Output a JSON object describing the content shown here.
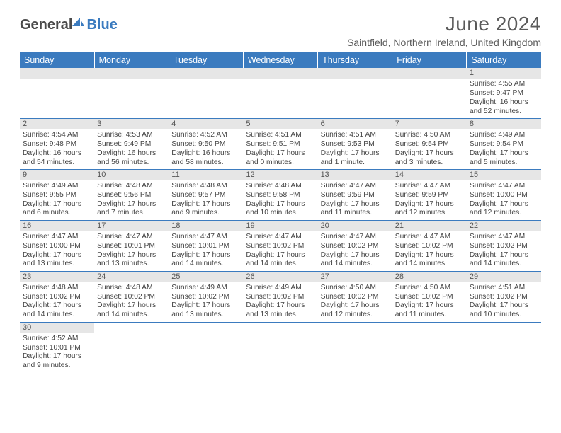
{
  "brand": {
    "part1": "General",
    "part2": "Blue",
    "accent_color": "#3b7bbf",
    "text_color": "#4a4a4a"
  },
  "header": {
    "title": "June 2024",
    "subtitle": "Saintfield, Northern Ireland, United Kingdom"
  },
  "colors": {
    "header_bg": "#3b7bbf",
    "header_fg": "#ffffff",
    "daynum_bg": "#e6e6e6",
    "row_border": "#3b7bbf",
    "body_text": "#444444"
  },
  "daysOfWeek": [
    "Sunday",
    "Monday",
    "Tuesday",
    "Wednesday",
    "Thursday",
    "Friday",
    "Saturday"
  ],
  "weeks": [
    [
      null,
      null,
      null,
      null,
      null,
      null,
      {
        "n": "1",
        "sr": "4:55 AM",
        "ss": "9:47 PM",
        "dl": "16 hours and 52 minutes."
      }
    ],
    [
      {
        "n": "2",
        "sr": "4:54 AM",
        "ss": "9:48 PM",
        "dl": "16 hours and 54 minutes."
      },
      {
        "n": "3",
        "sr": "4:53 AM",
        "ss": "9:49 PM",
        "dl": "16 hours and 56 minutes."
      },
      {
        "n": "4",
        "sr": "4:52 AM",
        "ss": "9:50 PM",
        "dl": "16 hours and 58 minutes."
      },
      {
        "n": "5",
        "sr": "4:51 AM",
        "ss": "9:51 PM",
        "dl": "17 hours and 0 minutes."
      },
      {
        "n": "6",
        "sr": "4:51 AM",
        "ss": "9:53 PM",
        "dl": "17 hours and 1 minute."
      },
      {
        "n": "7",
        "sr": "4:50 AM",
        "ss": "9:54 PM",
        "dl": "17 hours and 3 minutes."
      },
      {
        "n": "8",
        "sr": "4:49 AM",
        "ss": "9:54 PM",
        "dl": "17 hours and 5 minutes."
      }
    ],
    [
      {
        "n": "9",
        "sr": "4:49 AM",
        "ss": "9:55 PM",
        "dl": "17 hours and 6 minutes."
      },
      {
        "n": "10",
        "sr": "4:48 AM",
        "ss": "9:56 PM",
        "dl": "17 hours and 7 minutes."
      },
      {
        "n": "11",
        "sr": "4:48 AM",
        "ss": "9:57 PM",
        "dl": "17 hours and 9 minutes."
      },
      {
        "n": "12",
        "sr": "4:48 AM",
        "ss": "9:58 PM",
        "dl": "17 hours and 10 minutes."
      },
      {
        "n": "13",
        "sr": "4:47 AM",
        "ss": "9:59 PM",
        "dl": "17 hours and 11 minutes."
      },
      {
        "n": "14",
        "sr": "4:47 AM",
        "ss": "9:59 PM",
        "dl": "17 hours and 12 minutes."
      },
      {
        "n": "15",
        "sr": "4:47 AM",
        "ss": "10:00 PM",
        "dl": "17 hours and 12 minutes."
      }
    ],
    [
      {
        "n": "16",
        "sr": "4:47 AM",
        "ss": "10:00 PM",
        "dl": "17 hours and 13 minutes."
      },
      {
        "n": "17",
        "sr": "4:47 AM",
        "ss": "10:01 PM",
        "dl": "17 hours and 13 minutes."
      },
      {
        "n": "18",
        "sr": "4:47 AM",
        "ss": "10:01 PM",
        "dl": "17 hours and 14 minutes."
      },
      {
        "n": "19",
        "sr": "4:47 AM",
        "ss": "10:02 PM",
        "dl": "17 hours and 14 minutes."
      },
      {
        "n": "20",
        "sr": "4:47 AM",
        "ss": "10:02 PM",
        "dl": "17 hours and 14 minutes."
      },
      {
        "n": "21",
        "sr": "4:47 AM",
        "ss": "10:02 PM",
        "dl": "17 hours and 14 minutes."
      },
      {
        "n": "22",
        "sr": "4:47 AM",
        "ss": "10:02 PM",
        "dl": "17 hours and 14 minutes."
      }
    ],
    [
      {
        "n": "23",
        "sr": "4:48 AM",
        "ss": "10:02 PM",
        "dl": "17 hours and 14 minutes."
      },
      {
        "n": "24",
        "sr": "4:48 AM",
        "ss": "10:02 PM",
        "dl": "17 hours and 14 minutes."
      },
      {
        "n": "25",
        "sr": "4:49 AM",
        "ss": "10:02 PM",
        "dl": "17 hours and 13 minutes."
      },
      {
        "n": "26",
        "sr": "4:49 AM",
        "ss": "10:02 PM",
        "dl": "17 hours and 13 minutes."
      },
      {
        "n": "27",
        "sr": "4:50 AM",
        "ss": "10:02 PM",
        "dl": "17 hours and 12 minutes."
      },
      {
        "n": "28",
        "sr": "4:50 AM",
        "ss": "10:02 PM",
        "dl": "17 hours and 11 minutes."
      },
      {
        "n": "29",
        "sr": "4:51 AM",
        "ss": "10:02 PM",
        "dl": "17 hours and 10 minutes."
      }
    ],
    [
      {
        "n": "30",
        "sr": "4:52 AM",
        "ss": "10:01 PM",
        "dl": "17 hours and 9 minutes."
      },
      null,
      null,
      null,
      null,
      null,
      null
    ]
  ],
  "labels": {
    "sunrise": "Sunrise: ",
    "sunset": "Sunset: ",
    "daylight": "Daylight: "
  }
}
